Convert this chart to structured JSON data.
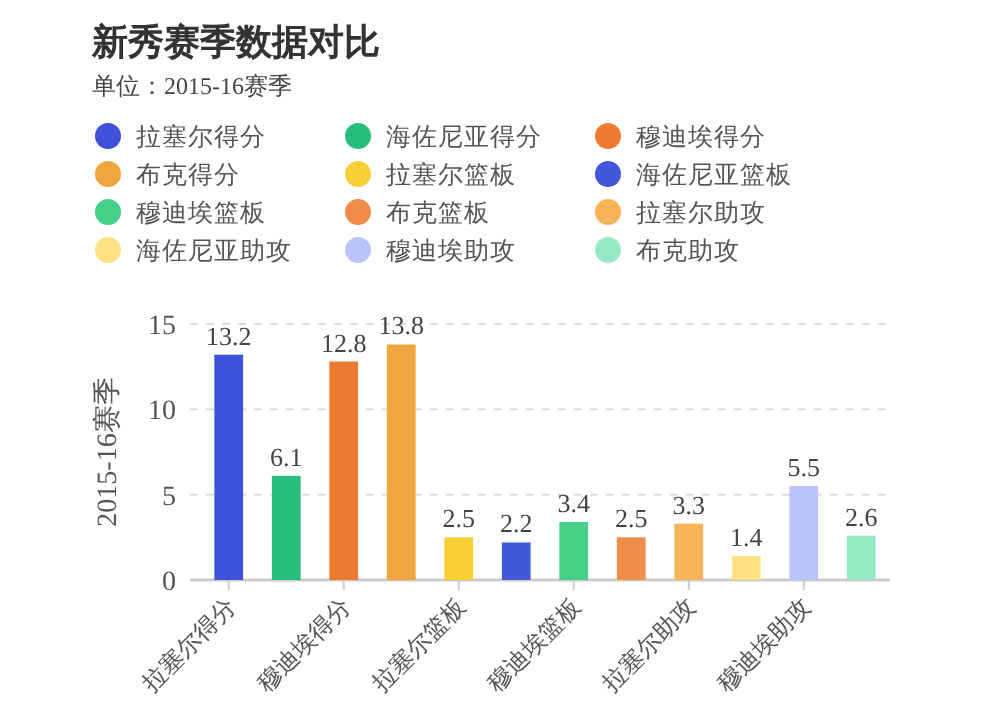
{
  "chart_data": {
    "type": "bar",
    "title": "新秀赛季数据对比",
    "subtitle": "单位：2015-16赛季",
    "ylabel": "2015-16赛季",
    "categories": [
      "拉塞尔得分",
      null,
      "穆迪埃得分",
      null,
      "拉塞尔篮板",
      null,
      "穆迪埃篮板",
      null,
      "拉塞尔助攻",
      null,
      "穆迪埃助攻",
      null
    ],
    "series": [
      {
        "name": "拉塞尔得分",
        "color": "#3f51d6",
        "values": [
          13.2,
          null,
          null,
          null,
          null,
          null,
          null,
          null,
          null,
          null,
          null,
          null
        ]
      },
      {
        "name": "海佐尼亚得分",
        "color": "#27bd7c",
        "values": [
          null,
          6.1,
          null,
          null,
          null,
          null,
          null,
          null,
          null,
          null,
          null,
          null
        ]
      },
      {
        "name": "穆迪埃得分",
        "color": "#ec7a30",
        "values": [
          null,
          null,
          12.8,
          null,
          null,
          null,
          null,
          null,
          null,
          null,
          null,
          null
        ]
      },
      {
        "name": "布克得分",
        "color": "#efa63e",
        "values": [
          null,
          null,
          null,
          13.8,
          null,
          null,
          null,
          null,
          null,
          null,
          null,
          null
        ]
      },
      {
        "name": "拉塞尔篮板",
        "color": "#f8cf35",
        "values": [
          null,
          null,
          null,
          null,
          2.5,
          null,
          null,
          null,
          null,
          null,
          null,
          null
        ]
      },
      {
        "name": "海佐尼亚篮板",
        "color": "#4258d8",
        "values": [
          null,
          null,
          null,
          null,
          null,
          2.2,
          null,
          null,
          null,
          null,
          null,
          null
        ]
      },
      {
        "name": "穆迪埃篮板",
        "color": "#45d08a",
        "values": [
          null,
          null,
          null,
          null,
          null,
          null,
          3.4,
          null,
          null,
          null,
          null,
          null
        ]
      },
      {
        "name": "布克篮板",
        "color": "#f08c4a",
        "values": [
          null,
          null,
          null,
          null,
          null,
          null,
          null,
          2.5,
          null,
          null,
          null,
          null
        ]
      },
      {
        "name": "拉塞尔助攻",
        "color": "#f9b358",
        "values": [
          null,
          null,
          null,
          null,
          null,
          null,
          null,
          null,
          3.3,
          null,
          null,
          null
        ]
      },
      {
        "name": "海佐尼亚助攻",
        "color": "#fde183",
        "values": [
          null,
          null,
          null,
          null,
          null,
          null,
          null,
          null,
          null,
          1.4,
          null,
          null
        ]
      },
      {
        "name": "穆迪埃助攻",
        "color": "#b8c4fb",
        "values": [
          null,
          null,
          null,
          null,
          null,
          null,
          null,
          null,
          null,
          null,
          5.5,
          null
        ]
      },
      {
        "name": "布克助攻",
        "color": "#95e9c3",
        "values": [
          null,
          null,
          null,
          null,
          null,
          null,
          null,
          null,
          null,
          null,
          null,
          2.6
        ]
      }
    ],
    "ylim": [
      0,
      15
    ],
    "yticks": [
      0,
      5,
      10,
      15
    ],
    "grid": "y",
    "legend": "top left",
    "data_labels": true
  }
}
